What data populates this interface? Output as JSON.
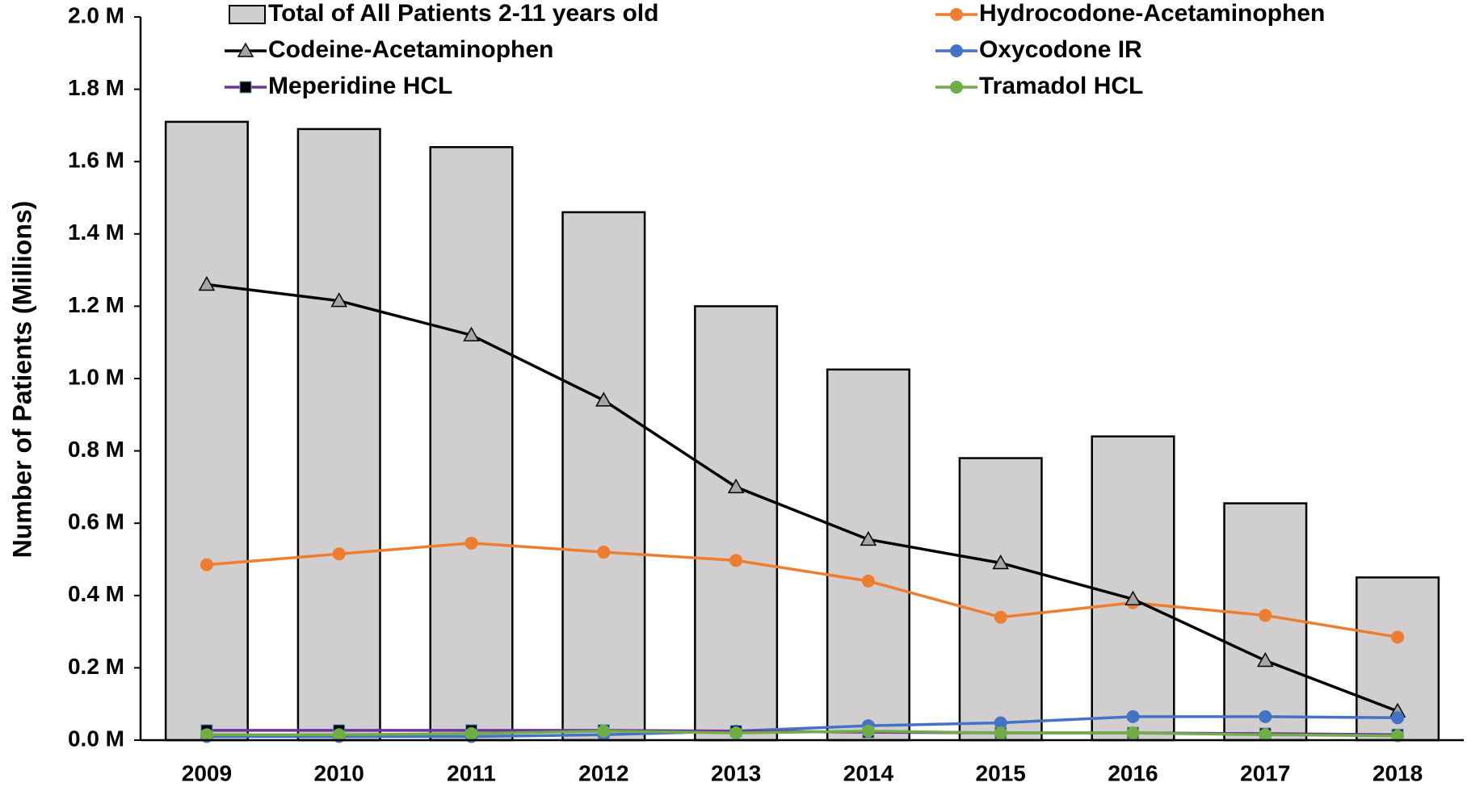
{
  "chart_data": {
    "type": "bar_line",
    "y_label": "Number of Patients (Millions)",
    "categories": [
      "2009",
      "2010",
      "2011",
      "2012",
      "2013",
      "2014",
      "2015",
      "2016",
      "2017",
      "2018"
    ],
    "ylim": [
      0,
      2.0
    ],
    "yticks": [
      {
        "value": 0,
        "label": "0.0 M"
      },
      {
        "value": 0.2,
        "label": "0.2 M"
      },
      {
        "value": 0.4,
        "label": "0.4 M"
      },
      {
        "value": 0.6,
        "label": "0.6 M"
      },
      {
        "value": 0.8,
        "label": "0.8 M"
      },
      {
        "value": 1.0,
        "label": "1.0 M"
      },
      {
        "value": 1.2,
        "label": "1.2 M"
      },
      {
        "value": 1.4,
        "label": "1.4 M"
      },
      {
        "value": 1.6,
        "label": "1.6 M"
      },
      {
        "value": 1.8,
        "label": "1.8 M"
      },
      {
        "value": 2.0,
        "label": "2.0 M"
      }
    ],
    "series": [
      {
        "name": "Total of All Patients 2-11 years old",
        "kind": "bar",
        "color": "#d0cece",
        "values": [
          1.71,
          1.69,
          1.64,
          1.46,
          1.2,
          1.025,
          0.78,
          0.84,
          0.655,
          0.45
        ]
      },
      {
        "name": "Hydrocodone-Acetaminophen",
        "kind": "line",
        "marker": "circle",
        "color": "#ed7d31",
        "values": [
          0.485,
          0.515,
          0.545,
          0.52,
          0.497,
          0.44,
          0.34,
          0.38,
          0.345,
          0.285
        ]
      },
      {
        "name": "Codeine-Acetaminophen",
        "kind": "line",
        "marker": "triangle",
        "color": "#000000",
        "values": [
          1.26,
          1.215,
          1.12,
          0.94,
          0.7,
          0.555,
          0.49,
          0.39,
          0.22,
          0.08
        ]
      },
      {
        "name": "Oxycodone IR",
        "kind": "line",
        "marker": "circle",
        "color": "#4472c4",
        "values": [
          0.01,
          0.01,
          0.01,
          0.015,
          0.025,
          0.04,
          0.048,
          0.065,
          0.065,
          0.062
        ]
      },
      {
        "name": "Meperidine HCL",
        "kind": "line",
        "marker": "square",
        "color": "#7030a0",
        "values": [
          0.027,
          0.027,
          0.027,
          0.027,
          0.025,
          0.022,
          0.02,
          0.02,
          0.018,
          0.015
        ]
      },
      {
        "name": "Tramadol HCL",
        "kind": "line",
        "marker": "circle",
        "color": "#70ad47",
        "values": [
          0.015,
          0.015,
          0.018,
          0.025,
          0.02,
          0.025,
          0.02,
          0.02,
          0.015,
          0.012
        ]
      }
    ]
  }
}
